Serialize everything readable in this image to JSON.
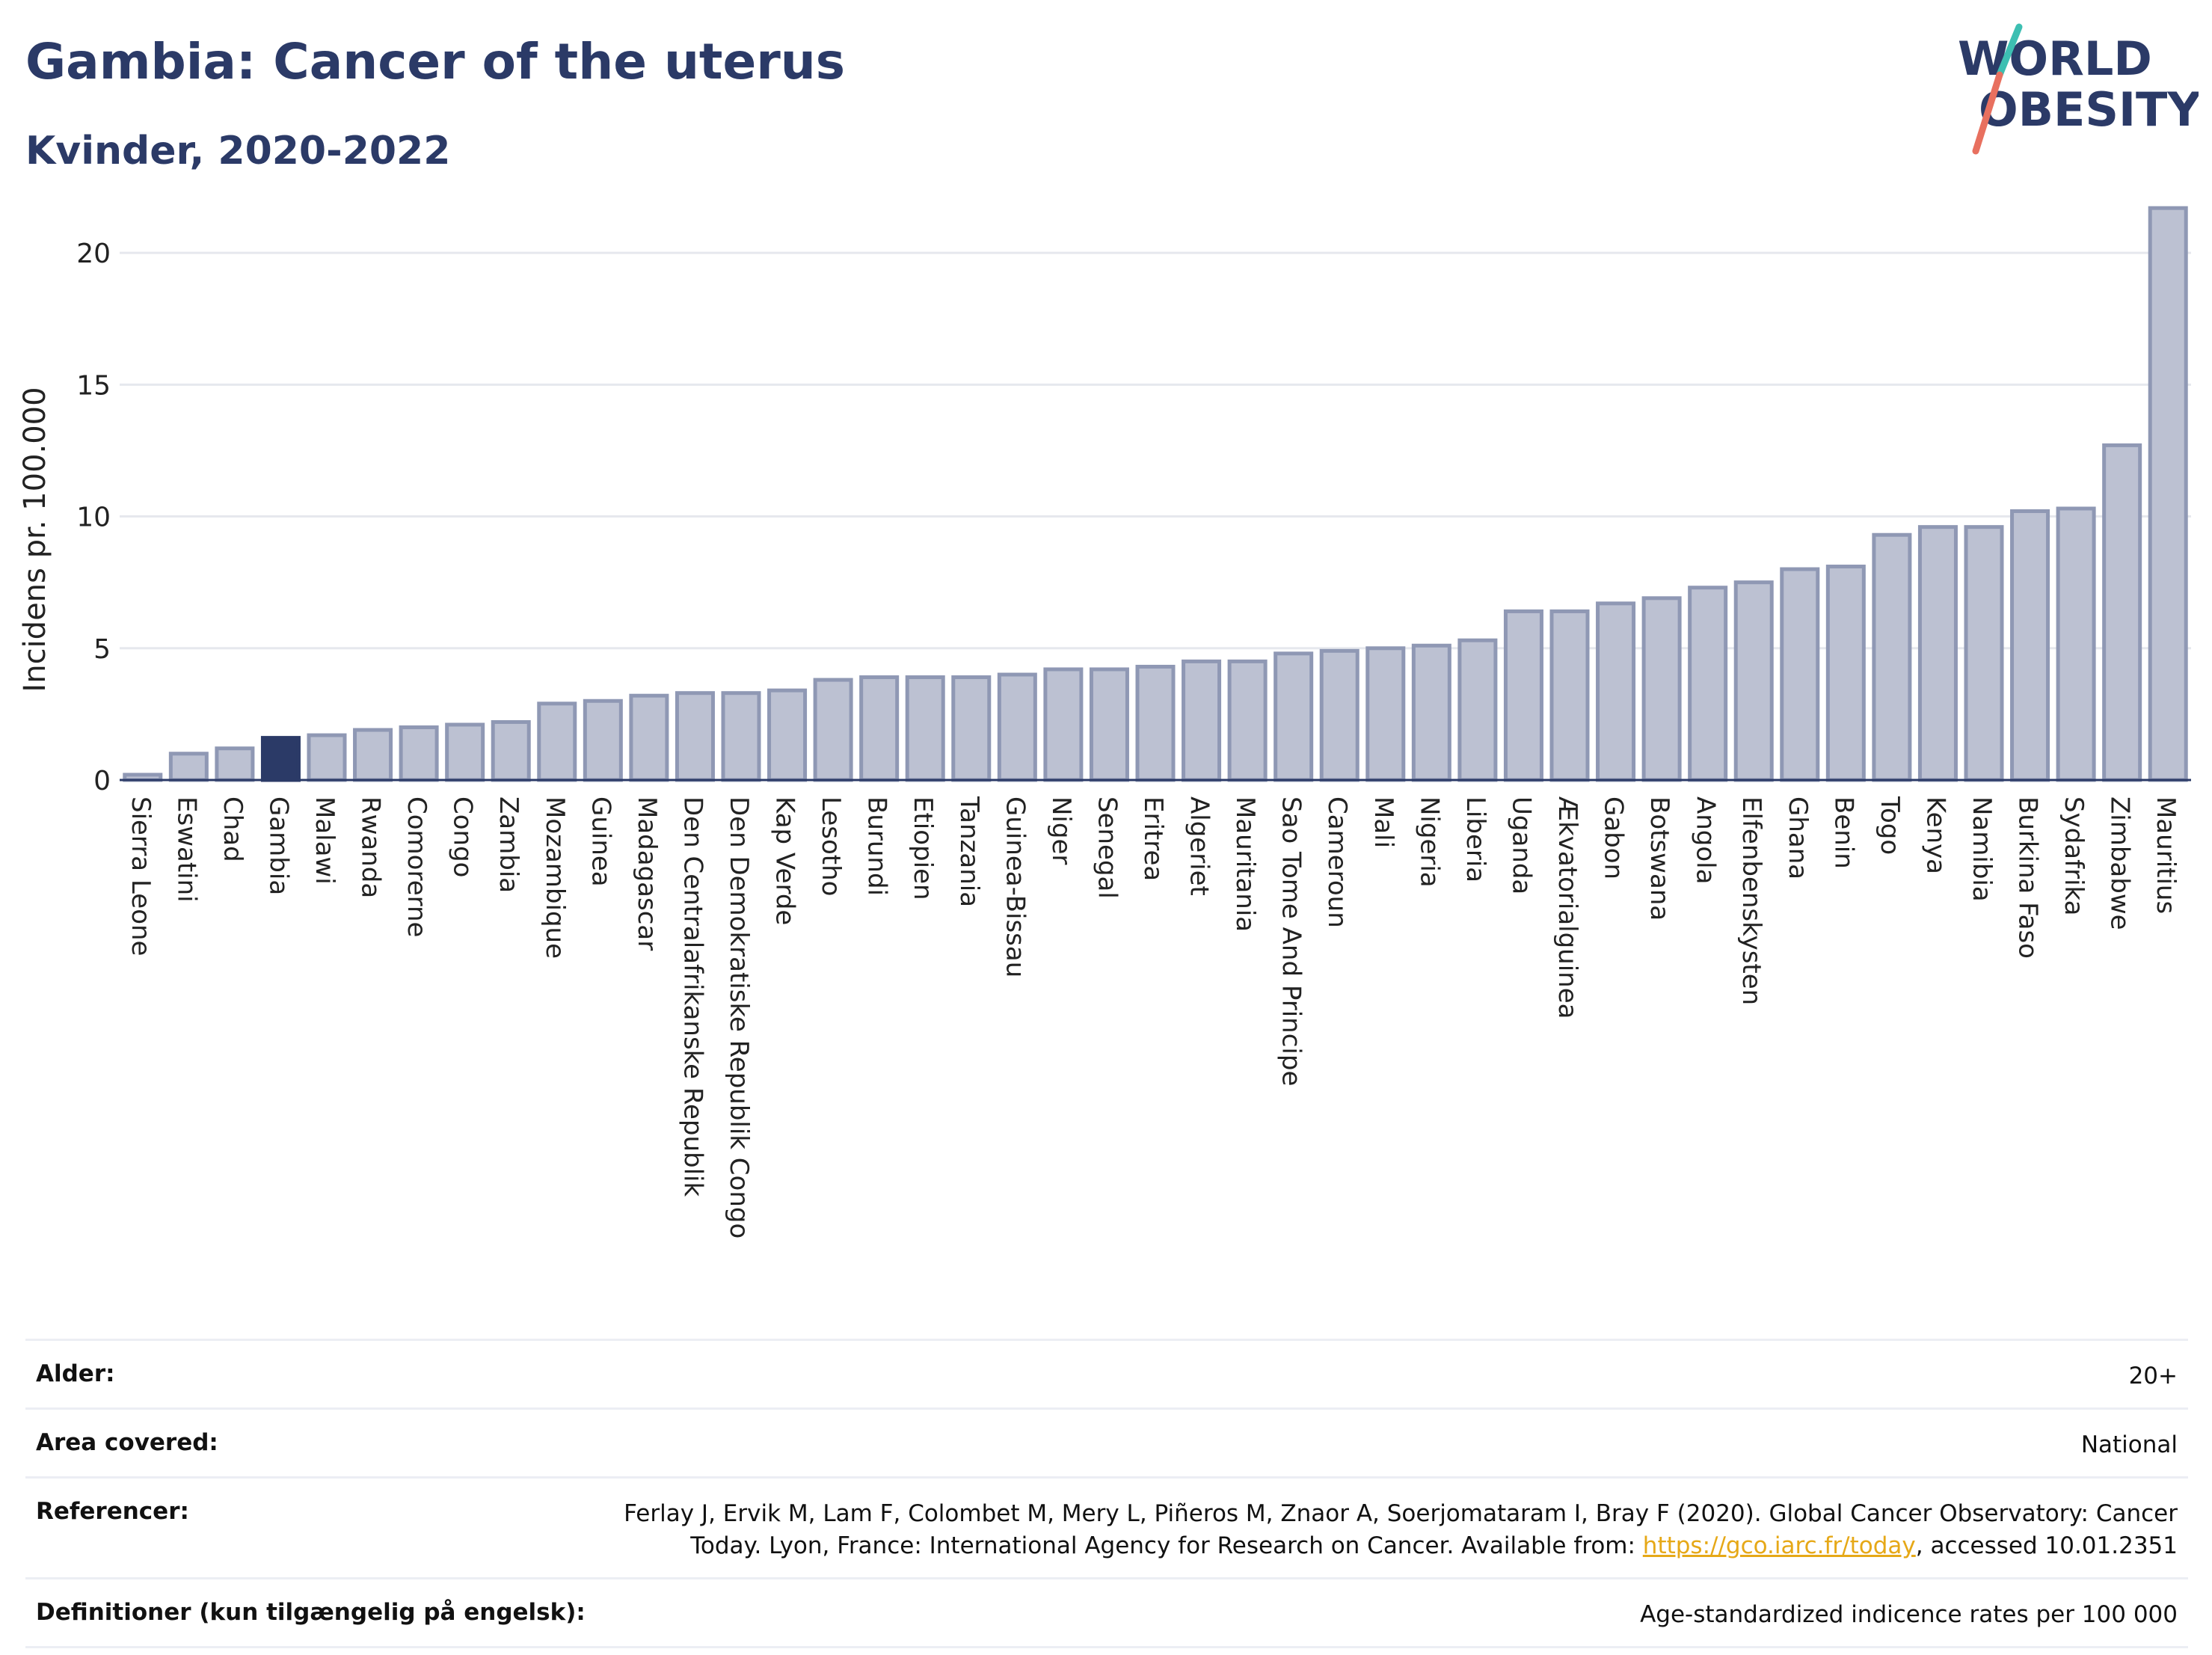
{
  "header": {
    "title": "Gambia: Cancer of the uterus",
    "subtitle": "Kvinder, 2020-2022"
  },
  "logo": {
    "line1": "WORLD",
    "line2": "OBESITY"
  },
  "colors": {
    "highlight": "#2b3a67",
    "bar_fill": "#bcc1d2",
    "bar_stroke": "#8f98b4",
    "title": "#2b3a67"
  },
  "chart_data": {
    "type": "bar",
    "ylabel": "Incidens pr. 100.000",
    "xlabel": "",
    "ylim": [
      0,
      22.5
    ],
    "yticks": [
      0,
      5,
      10,
      15,
      20
    ],
    "grid": true,
    "highlight": "Gambia",
    "categories": [
      "Sierra Leone",
      "Eswatini",
      "Chad",
      "Gambia",
      "Malawi",
      "Rwanda",
      "Comorerne",
      "Congo",
      "Zambia",
      "Mozambique",
      "Guinea",
      "Madagascar",
      "Den Centralafrikanske Republik",
      "Den Demokratiske Republik Congo",
      "Kap Verde",
      "Lesotho",
      "Burundi",
      "Etiopien",
      "Tanzania",
      "Guinea-Bissau",
      "Niger",
      "Senegal",
      "Eritrea",
      "Algeriet",
      "Mauritania",
      "Sao Tome And Principe",
      "Cameroun",
      "Mali",
      "Nigeria",
      "Liberia",
      "Uganda",
      "Ækvatorialguinea",
      "Gabon",
      "Botswana",
      "Angola",
      "Elfenbenskysten",
      "Ghana",
      "Benin",
      "Togo",
      "Kenya",
      "Namibia",
      "Burkina Faso",
      "Sydafrika",
      "Zimbabwe",
      "Mauritius"
    ],
    "values": [
      0.2,
      1.0,
      1.2,
      1.6,
      1.7,
      1.9,
      2.0,
      2.1,
      2.2,
      2.9,
      3.0,
      3.2,
      3.3,
      3.3,
      3.4,
      3.8,
      3.9,
      3.9,
      3.9,
      4.0,
      4.2,
      4.2,
      4.3,
      4.5,
      4.5,
      4.8,
      4.9,
      5.0,
      5.1,
      5.3,
      6.4,
      6.4,
      6.7,
      6.9,
      7.3,
      7.5,
      8.0,
      8.1,
      9.3,
      9.6,
      9.6,
      10.2,
      10.3,
      12.7,
      21.7
    ]
  },
  "info": {
    "rows": [
      {
        "label": "Alder:",
        "value": "20+"
      },
      {
        "label": "Area covered:",
        "value": "National"
      },
      {
        "label": "Referencer:",
        "value_pre": "Ferlay J, Ervik M, Lam F, Colombet M, Mery L, Piñeros M, Znaor A, Soerjomataram I, Bray F (2020). Global Cancer Observatory: Cancer Today. Lyon, France: International Agency for Research on Cancer. Available from: ",
        "link": "https://gco.iarc.fr/today",
        "value_post": ", accessed 10.01.2351"
      },
      {
        "label": "Definitioner (kun tilgængelig på engelsk):",
        "value": "Age-standardized indicence rates per 100 000"
      }
    ]
  }
}
